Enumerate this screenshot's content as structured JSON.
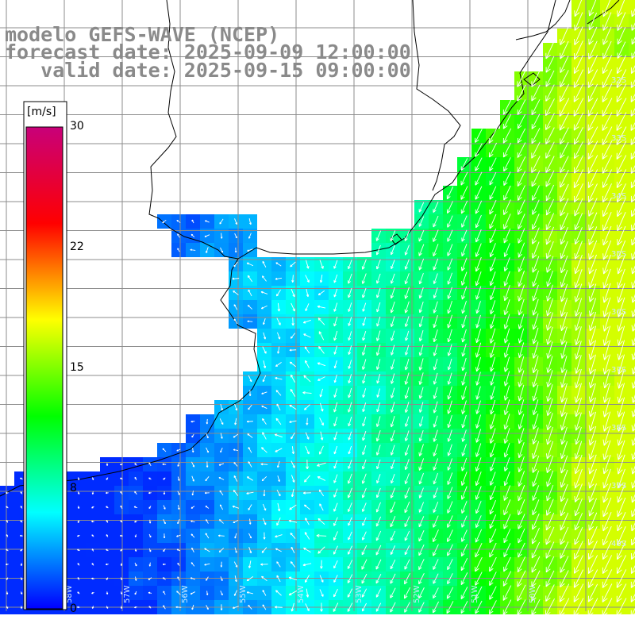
{
  "titles": {
    "model": "modelo GEFS-WAVE (NCEP)",
    "forecast": "forecast date: 2025-09-09 12:00:00",
    "valid": "   valid date: 2025-09-15 09:00:00"
  },
  "colorbar": {
    "unit": "[m/s]",
    "ticks": [
      "30",
      "22",
      "15",
      "8",
      "0"
    ],
    "range": [
      0,
      30
    ],
    "stops": [
      "#0000ff",
      "#00ffff",
      "#00ff00",
      "#ffff00",
      "#ff0000",
      "#c8007a"
    ]
  },
  "map": {
    "lat_labels": [
      "32S",
      "33S",
      "34S",
      "35S",
      "36S",
      "37S",
      "38S",
      "39S",
      "40S"
    ],
    "lon_labels": [
      "58W",
      "57W",
      "56W",
      "55W",
      "54W",
      "53W",
      "52W",
      "51W",
      "50W"
    ],
    "colors": {
      "land": "#ffffff",
      "grid": "#8c8c8c",
      "coast": "#000000"
    }
  }
}
